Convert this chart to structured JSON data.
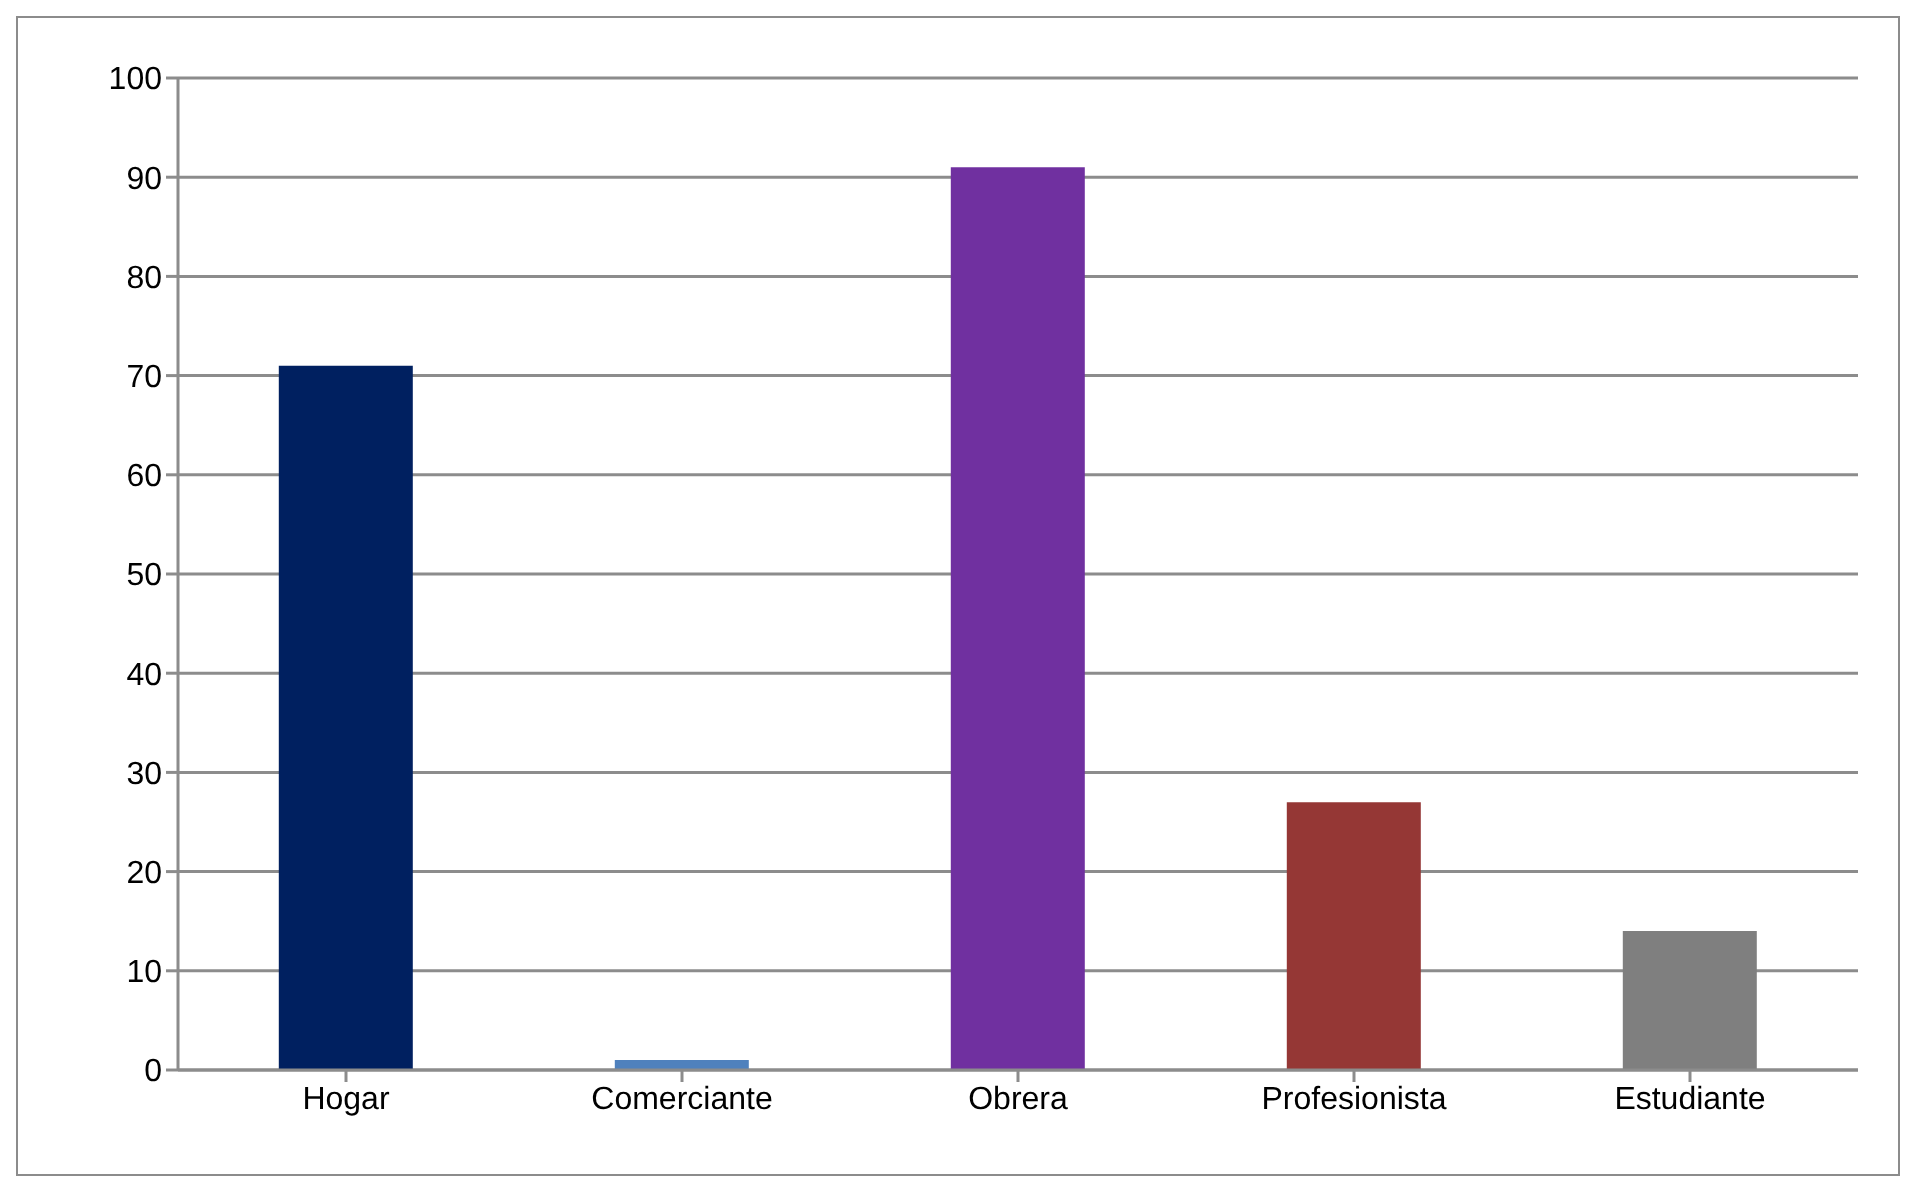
{
  "chart_data": {
    "type": "bar",
    "categories": [
      "Hogar",
      "Comerciante",
      "Obrera",
      "Profesionista",
      "Estudiante"
    ],
    "values": [
      71,
      1,
      91,
      27,
      14
    ],
    "colors": [
      "#002060",
      "#4f81bd",
      "#7030a0",
      "#953735",
      "#7f7f7f"
    ],
    "ylim": [
      0,
      100
    ],
    "yticks": [
      0,
      10,
      20,
      30,
      40,
      50,
      60,
      70,
      80,
      90,
      100
    ],
    "grid": "y"
  }
}
